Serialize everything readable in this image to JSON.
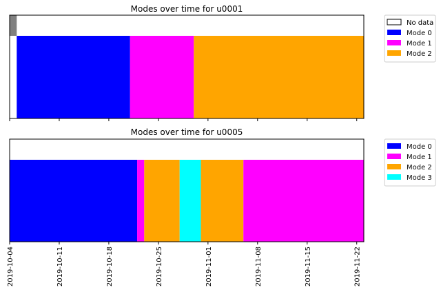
{
  "chart_data": [
    {
      "type": "timeline",
      "title": "Modes over time for u0001",
      "xlim": [
        "2019-10-04",
        "2019-11-23"
      ],
      "segments": [
        {
          "start": "2019-10-04",
          "end": "2019-10-05",
          "mode": "No data",
          "band": "top"
        },
        {
          "start": "2019-10-05",
          "end": "2019-10-21",
          "mode": "Mode 0",
          "band": "main"
        },
        {
          "start": "2019-10-21",
          "end": "2019-10-30",
          "mode": "Mode 1",
          "band": "main"
        },
        {
          "start": "2019-10-30",
          "end": "2019-11-23",
          "mode": "Mode 2",
          "band": "main"
        }
      ],
      "legend": [
        {
          "label": "No data",
          "color": "#ffffff"
        },
        {
          "label": "Mode 0",
          "color": "#0000ff"
        },
        {
          "label": "Mode 1",
          "color": "#ff00ff"
        },
        {
          "label": "Mode 2",
          "color": "#ffa500"
        }
      ],
      "legend_position": "outside-right",
      "show_xtick_labels": false
    },
    {
      "type": "timeline",
      "title": "Modes over time for u0005",
      "xlim": [
        "2019-10-04",
        "2019-11-23"
      ],
      "segments": [
        {
          "start": "2019-10-04",
          "end": "2019-10-22",
          "mode": "Mode 0",
          "band": "main"
        },
        {
          "start": "2019-10-22",
          "end": "2019-10-23",
          "mode": "Mode 1",
          "band": "main"
        },
        {
          "start": "2019-10-23",
          "end": "2019-10-28",
          "mode": "Mode 2",
          "band": "main"
        },
        {
          "start": "2019-10-28",
          "end": "2019-10-31",
          "mode": "Mode 3",
          "band": "main"
        },
        {
          "start": "2019-10-31",
          "end": "2019-11-06",
          "mode": "Mode 2",
          "band": "main"
        },
        {
          "start": "2019-11-06",
          "end": "2019-11-23",
          "mode": "Mode 1",
          "band": "main"
        }
      ],
      "legend": [
        {
          "label": "Mode 0",
          "color": "#0000ff"
        },
        {
          "label": "Mode 1",
          "color": "#ff00ff"
        },
        {
          "label": "Mode 2",
          "color": "#ffa500"
        },
        {
          "label": "Mode 3",
          "color": "#00ffff"
        }
      ],
      "legend_position": "outside-right",
      "show_xtick_labels": true
    }
  ],
  "shared_x": {
    "ticks": [
      "2019-10-04",
      "2019-10-11",
      "2019-10-18",
      "2019-10-25",
      "2019-11-01",
      "2019-11-08",
      "2019-11-15",
      "2019-11-22"
    ],
    "tick_label_rotation": "vertical"
  },
  "colors": {
    "No data": "#808080",
    "Mode 0": "#0000ff",
    "Mode 1": "#ff00ff",
    "Mode 2": "#ffa500",
    "Mode 3": "#00ffff"
  }
}
